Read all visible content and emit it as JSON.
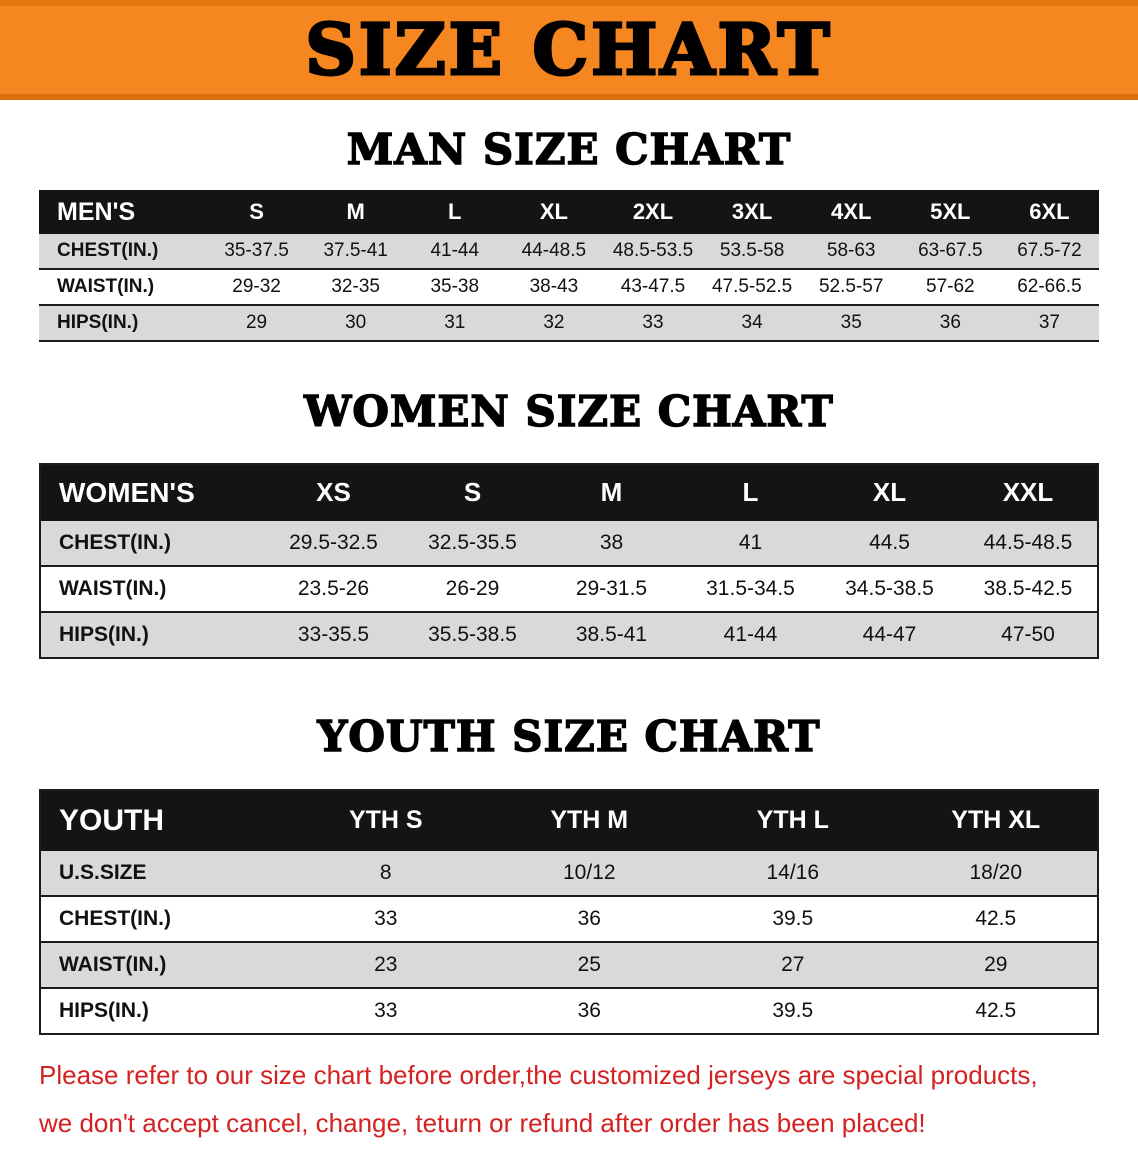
{
  "banner": {
    "title": "SIZE CHART"
  },
  "colors": {
    "banner_orange": "#f6861f",
    "header_black": "#141414",
    "row_gray": "#d9d9d9",
    "footer_red": "#d42222"
  },
  "sections": [
    {
      "id": "men",
      "heading": "MAN SIZE CHART",
      "table": {
        "header": [
          "MEN'S",
          "S",
          "M",
          "L",
          "XL",
          "2XL",
          "3XL",
          "4XL",
          "5XL",
          "6XL"
        ],
        "rows": [
          [
            "CHEST(IN.)",
            "35-37.5",
            "37.5-41",
            "41-44",
            "44-48.5",
            "48.5-53.5",
            "53.5-58",
            "58-63",
            "63-67.5",
            "67.5-72"
          ],
          [
            "WAIST(IN.)",
            "29-32",
            "32-35",
            "35-38",
            "38-43",
            "43-47.5",
            "47.5-52.5",
            "52.5-57",
            "57-62",
            "62-66.5"
          ],
          [
            "HIPS(IN.)",
            "29",
            "30",
            "31",
            "32",
            "33",
            "34",
            "35",
            "36",
            "37"
          ]
        ]
      }
    },
    {
      "id": "women",
      "heading": "WOMEN SIZE CHART",
      "table": {
        "header": [
          "WOMEN'S",
          "XS",
          "S",
          "M",
          "L",
          "XL",
          "XXL"
        ],
        "rows": [
          [
            "CHEST(IN.)",
            "29.5-32.5",
            "32.5-35.5",
            "38",
            "41",
            "44.5",
            "44.5-48.5"
          ],
          [
            "WAIST(IN.)",
            "23.5-26",
            "26-29",
            "29-31.5",
            "31.5-34.5",
            "34.5-38.5",
            "38.5-42.5"
          ],
          [
            "HIPS(IN.)",
            "33-35.5",
            "35.5-38.5",
            "38.5-41",
            "41-44",
            "44-47",
            "47-50"
          ]
        ]
      }
    },
    {
      "id": "youth",
      "heading": "YOUTH SIZE CHART",
      "table": {
        "header": [
          "YOUTH",
          "YTH S",
          "YTH M",
          "YTH L",
          "YTH XL"
        ],
        "rows": [
          [
            "U.S.SIZE",
            "8",
            "10/12",
            "14/16",
            "18/20"
          ],
          [
            "CHEST(IN.)",
            "33",
            "36",
            "39.5",
            "42.5"
          ],
          [
            "WAIST(IN.)",
            "23",
            "25",
            "27",
            "29"
          ],
          [
            "HIPS(IN.)",
            "33",
            "36",
            "39.5",
            "42.5"
          ]
        ]
      }
    }
  ],
  "footer": {
    "line1": "Please refer to our size chart before order,the customized jerseys are special products,",
    "line2": "we don't accept cancel, change, teturn or refund after order has been placed!"
  }
}
